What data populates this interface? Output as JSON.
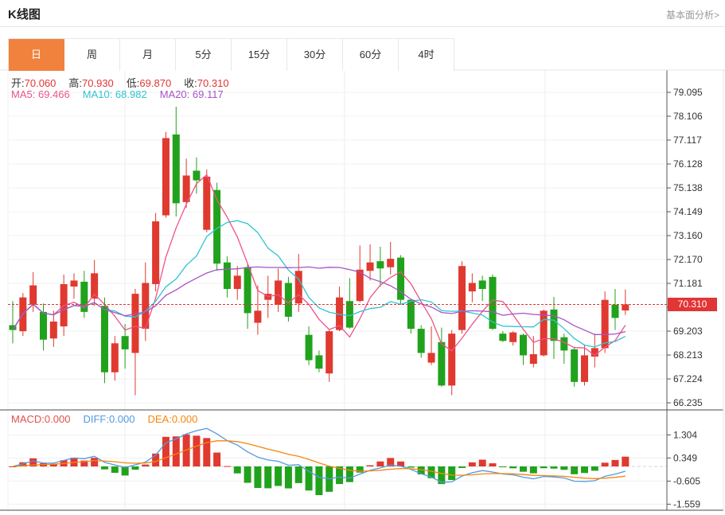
{
  "page": {
    "title": "K线图",
    "analysis_link": "基本面分析>"
  },
  "tabs": {
    "items": [
      {
        "label": "日",
        "active": true
      },
      {
        "label": "周",
        "active": false
      },
      {
        "label": "月",
        "active": false
      },
      {
        "label": "5分",
        "active": false
      },
      {
        "label": "15分",
        "active": false
      },
      {
        "label": "30分",
        "active": false
      },
      {
        "label": "60分",
        "active": false
      },
      {
        "label": "4时",
        "active": false
      }
    ]
  },
  "ohlc_legend": {
    "items": [
      {
        "label": "开:",
        "value": "70.060"
      },
      {
        "label": "高:",
        "value": "70.930"
      },
      {
        "label": "低:",
        "value": "69.870"
      },
      {
        "label": "收:",
        "value": "70.310"
      }
    ]
  },
  "ma_legend": {
    "items": [
      {
        "label": "MA5: ",
        "value": "69.466",
        "color": "#ef5286"
      },
      {
        "label": "MA10: ",
        "value": "68.982",
        "color": "#2fc4d2"
      },
      {
        "label": "MA20: ",
        "value": "69.117",
        "color": "#a653c8"
      }
    ]
  },
  "macd_legend": {
    "items": [
      {
        "label": "MACD:",
        "value": "0.000",
        "color": "#e0524e"
      },
      {
        "label": "DIFF:",
        "value": "0.000",
        "color": "#529ae0"
      },
      {
        "label": "DEA:",
        "value": "0.000",
        "color": "#f5860f"
      }
    ]
  },
  "price_tag": {
    "value": "70.310"
  },
  "colors": {
    "up": "#e0392f",
    "down": "#21a21c",
    "ma5": "#ef5286",
    "ma10": "#2fc4d2",
    "ma20": "#a653c8",
    "diff": "#529ae0",
    "dea": "#f5860f",
    "accent_tab": "#f0823e",
    "grid": "#f0f0f0",
    "grid_v": "#ececec",
    "axis": "#555555",
    "label": "#333333",
    "dotted": "#e23535",
    "zero_dash": "#c9d4de",
    "value_red": "#e23535",
    "border": "#e5e5e5",
    "dark_border": "#4a4a4a"
  },
  "chart_data": {
    "type": "candlestick",
    "title": "K线图",
    "legend_position": "top-left",
    "grid": true,
    "price_axis_ticks": [
      79.095,
      78.106,
      77.117,
      76.128,
      75.138,
      74.149,
      73.16,
      72.17,
      71.181,
      70.192,
      69.203,
      68.213,
      67.224,
      66.235
    ],
    "hidden_tick_labels": [
      70.192
    ],
    "macd_axis_ticks": [
      1.304,
      0.349,
      -0.605,
      -1.559
    ],
    "current_price": 70.31,
    "price_axis_range": [
      66.0,
      79.4
    ],
    "macd_axis_range": [
      -1.77,
      2.1
    ],
    "vertical_gridlines_x": [
      157,
      433,
      685
    ],
    "ohlc": {
      "open": 70.06,
      "high": 70.93,
      "low": 69.87,
      "close": 70.31
    },
    "ma_values": {
      "MA5": 69.466,
      "MA10": 68.982,
      "MA20": 69.117
    },
    "macd_values": {
      "MACD": 0.0,
      "DIFF": 0.0,
      "DEA": 0.0
    },
    "indicator_periods": {
      "ma": [
        5,
        10,
        20
      ],
      "macd": [
        12,
        26,
        9
      ]
    },
    "candles": [
      [
        69.45,
        70.45,
        68.7,
        69.25
      ],
      [
        69.2,
        70.78,
        69.0,
        70.6
      ],
      [
        70.3,
        71.65,
        70.0,
        71.1
      ],
      [
        70.0,
        70.35,
        68.4,
        68.85
      ],
      [
        68.9,
        70.05,
        68.55,
        69.6
      ],
      [
        69.4,
        71.55,
        69.0,
        71.15
      ],
      [
        71.05,
        71.6,
        70.55,
        71.3
      ],
      [
        71.25,
        71.7,
        69.75,
        70.0
      ],
      [
        70.55,
        72.15,
        70.25,
        71.6
      ],
      [
        70.25,
        70.6,
        67.05,
        67.5
      ],
      [
        67.5,
        69.0,
        67.15,
        68.7
      ],
      [
        69.0,
        69.5,
        67.65,
        68.45
      ],
      [
        68.3,
        70.95,
        66.55,
        70.75
      ],
      [
        69.3,
        72.05,
        68.8,
        71.2
      ],
      [
        71.15,
        74.1,
        70.85,
        73.75
      ],
      [
        74.0,
        77.45,
        73.9,
        77.2
      ],
      [
        77.35,
        78.5,
        73.95,
        74.5
      ],
      [
        74.55,
        76.35,
        74.3,
        75.65
      ],
      [
        75.85,
        76.4,
        74.9,
        75.45
      ],
      [
        73.4,
        75.9,
        73.3,
        75.6
      ],
      [
        75.05,
        75.35,
        71.7,
        72.0
      ],
      [
        72.05,
        72.3,
        70.6,
        70.95
      ],
      [
        70.95,
        71.9,
        70.5,
        71.5
      ],
      [
        71.85,
        72.0,
        69.3,
        69.95
      ],
      [
        69.55,
        71.1,
        69.05,
        70.05
      ],
      [
        70.5,
        71.5,
        69.75,
        70.75
      ],
      [
        70.3,
        71.8,
        70.0,
        71.3
      ],
      [
        71.2,
        71.45,
        69.6,
        69.8
      ],
      [
        70.35,
        72.4,
        70.0,
        71.7
      ],
      [
        69.05,
        69.4,
        67.8,
        68.0
      ],
      [
        68.2,
        68.4,
        67.5,
        67.65
      ],
      [
        67.45,
        69.25,
        67.1,
        69.2
      ],
      [
        69.25,
        71.05,
        69.2,
        70.6
      ],
      [
        70.45,
        71.4,
        69.3,
        69.35
      ],
      [
        70.45,
        72.75,
        70.4,
        71.75
      ],
      [
        71.7,
        72.8,
        71.3,
        72.05
      ],
      [
        72.1,
        72.7,
        71.05,
        71.8
      ],
      [
        71.85,
        72.9,
        71.55,
        72.2
      ],
      [
        72.25,
        72.35,
        70.3,
        70.5
      ],
      [
        70.5,
        70.55,
        69.1,
        69.3
      ],
      [
        69.3,
        69.45,
        68.1,
        68.3
      ],
      [
        67.9,
        69.4,
        67.8,
        68.3
      ],
      [
        68.75,
        69.35,
        66.9,
        66.95
      ],
      [
        66.95,
        69.25,
        66.55,
        69.1
      ],
      [
        69.25,
        72.1,
        69.1,
        71.9
      ],
      [
        70.85,
        71.6,
        70.4,
        71.2
      ],
      [
        71.3,
        71.5,
        70.45,
        70.95
      ],
      [
        71.45,
        71.55,
        69.25,
        69.3
      ],
      [
        69.1,
        69.2,
        68.75,
        68.8
      ],
      [
        68.75,
        69.2,
        68.6,
        69.15
      ],
      [
        69.05,
        69.1,
        67.8,
        68.2
      ],
      [
        67.85,
        69.0,
        67.7,
        68.25
      ],
      [
        68.2,
        70.1,
        68.15,
        70.05
      ],
      [
        70.1,
        70.62,
        68.05,
        68.8
      ],
      [
        68.95,
        69.1,
        67.85,
        68.4
      ],
      [
        68.45,
        68.55,
        66.9,
        67.1
      ],
      [
        67.1,
        68.65,
        66.95,
        68.2
      ],
      [
        68.15,
        69.1,
        67.7,
        68.5
      ],
      [
        68.5,
        70.85,
        68.3,
        70.5
      ],
      [
        70.3,
        70.95,
        69.25,
        69.75
      ],
      [
        70.06,
        70.93,
        69.87,
        70.31
      ]
    ]
  }
}
